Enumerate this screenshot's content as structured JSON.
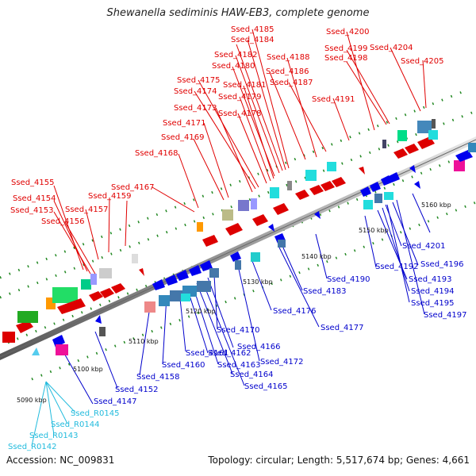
{
  "title": "Shewanella sediminis HAW-EB3, complete genome",
  "accession": "Accession: NC_009831",
  "stats": "Topology: circular; Length: 5,517,674 bp; Genes: 4,661",
  "ticks": [
    "5090 kbp",
    "5100 kbp",
    "5110 kbp",
    "5120 kbp",
    "5130 kbp",
    "5140 kbp",
    "5150 kbp",
    "5160 kbp"
  ],
  "labels_top": [
    "Ssed_4155",
    "Ssed_4154",
    "Ssed_4153",
    "Ssed_4156",
    "Ssed_4157",
    "Ssed_4159",
    "Ssed_4167",
    "Ssed_4168",
    "Ssed_4169",
    "Ssed_4171",
    "Ssed_4173",
    "Ssed_4174",
    "Ssed_4175",
    "Ssed_4178",
    "Ssed_4179",
    "Ssed_4181",
    "Ssed_4180",
    "Ssed_4182",
    "Ssed_4184",
    "Ssed_4185",
    "Ssed_4186",
    "Ssed_4188",
    "Ssed_4187",
    "Ssed_4191",
    "Ssed_4198",
    "Ssed_4199",
    "Ssed_4200",
    "Ssed_4204",
    "Ssed_4205"
  ],
  "labels_bottom": [
    "Ssed_4147",
    "Ssed_4152",
    "Ssed_4158",
    "Ssed_4160",
    "Ssed_4161",
    "Ssed_4162",
    "Ssed_4163",
    "Ssed_4164",
    "Ssed_4165",
    "Ssed_4166",
    "Ssed_4170",
    "Ssed_4172",
    "Ssed_4176",
    "Ssed_4177",
    "Ssed_4183",
    "Ssed_4190",
    "Ssed_4192",
    "Ssed_4193",
    "Ssed_4194",
    "Ssed_4195",
    "Ssed_4196",
    "Ssed_4197",
    "Ssed_4201"
  ],
  "labels_rna": [
    "Ssed_R0145",
    "Ssed_R0144",
    "Ssed_R0143",
    "Ssed_R0142"
  ],
  "colors": {
    "top_label": "#e00000",
    "bottom_label": "#0000cc",
    "rna_label": "#22bbdd"
  }
}
